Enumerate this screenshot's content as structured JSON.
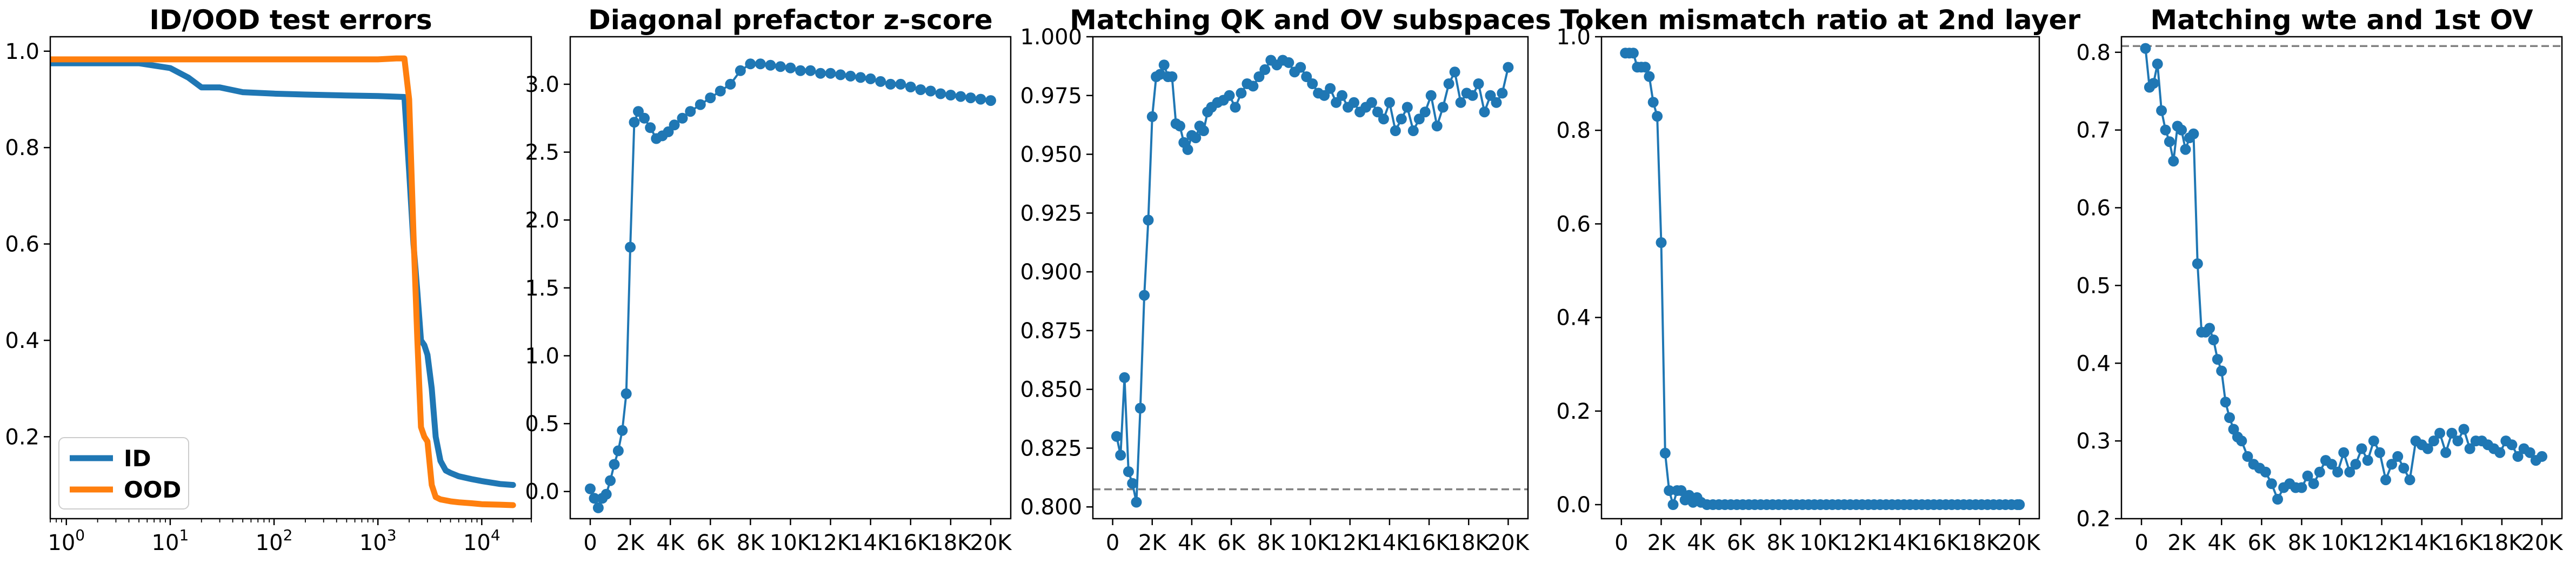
{
  "chart_data": [
    {
      "type": "line",
      "title": "ID/OOD test errors",
      "xscale": "log",
      "xlim": [
        0.7,
        30000
      ],
      "ylim": [
        0.03,
        1.03
      ],
      "xticks": [
        1,
        10,
        100,
        1000,
        10000
      ],
      "xtick_labels": [
        {
          "base": "10",
          "exp": "0"
        },
        {
          "base": "10",
          "exp": "1"
        },
        {
          "base": "10",
          "exp": "2"
        },
        {
          "base": "10",
          "exp": "3"
        },
        {
          "base": "10",
          "exp": "4"
        }
      ],
      "yticks": [
        0.2,
        0.4,
        0.6,
        0.8,
        1.0
      ],
      "ytick_labels": [
        "0.2",
        "0.4",
        "0.6",
        "0.8",
        "1.0"
      ],
      "legend": {
        "position": "lower-left"
      },
      "series": [
        {
          "name": "ID",
          "color": "#1f77b4",
          "x": [
            0.7,
            1,
            2,
            5,
            10,
            15,
            20,
            30,
            50,
            100,
            200,
            500,
            1000,
            1800,
            2000,
            2200,
            2400,
            2600,
            2800,
            3000,
            3300,
            3600,
            4000,
            4500,
            5000,
            6000,
            8000,
            10000,
            15000,
            20000
          ],
          "y": [
            0.975,
            0.975,
            0.975,
            0.975,
            0.965,
            0.945,
            0.925,
            0.925,
            0.915,
            0.912,
            0.91,
            0.908,
            0.907,
            0.905,
            0.75,
            0.6,
            0.5,
            0.4,
            0.39,
            0.37,
            0.3,
            0.2,
            0.15,
            0.13,
            0.125,
            0.118,
            0.112,
            0.108,
            0.102,
            0.1
          ]
        },
        {
          "name": "OOD",
          "color": "#ff7f0e",
          "x": [
            0.7,
            1,
            10,
            100,
            500,
            1000,
            1500,
            1800,
            2000,
            2200,
            2400,
            2600,
            2800,
            3000,
            3300,
            3600,
            4000,
            5000,
            6000,
            8000,
            10000,
            15000,
            20000
          ],
          "y": [
            0.983,
            0.983,
            0.983,
            0.983,
            0.983,
            0.983,
            0.985,
            0.985,
            0.9,
            0.62,
            0.4,
            0.22,
            0.2,
            0.19,
            0.1,
            0.075,
            0.07,
            0.066,
            0.064,
            0.062,
            0.06,
            0.059,
            0.058
          ]
        }
      ]
    },
    {
      "type": "line",
      "title": "Diagonal prefactor z-score",
      "xlim": [
        -1000,
        21000
      ],
      "ylim": [
        -0.2,
        3.35
      ],
      "xticks": [
        0,
        2000,
        4000,
        6000,
        8000,
        10000,
        12000,
        14000,
        16000,
        18000,
        20000
      ],
      "xtick_labels": [
        "0",
        "2K",
        "4K",
        "6K",
        "8K",
        "10K",
        "12K",
        "14K",
        "16K",
        "18K",
        "20K"
      ],
      "yticks": [
        0.0,
        0.5,
        1.0,
        1.5,
        2.0,
        2.5,
        3.0
      ],
      "ytick_labels": [
        "0.0",
        "0.5",
        "1.0",
        "1.5",
        "2.0",
        "2.5",
        "3.0"
      ],
      "series": [
        {
          "color": "#1f77b4",
          "marker": "o",
          "x": [
            0,
            200,
            400,
            600,
            800,
            1000,
            1200,
            1400,
            1600,
            1800,
            2000,
            2200,
            2400,
            2700,
            3000,
            3300,
            3600,
            3900,
            4200,
            4600,
            5000,
            5500,
            6000,
            6500,
            7000,
            7500,
            8000,
            8500,
            9000,
            9500,
            10000,
            10500,
            11000,
            11500,
            12000,
            12500,
            13000,
            13500,
            14000,
            14500,
            15000,
            15500,
            16000,
            16500,
            17000,
            17500,
            18000,
            18500,
            19000,
            19500,
            20000
          ],
          "y": [
            0.02,
            -0.05,
            -0.12,
            -0.05,
            -0.02,
            0.08,
            0.2,
            0.3,
            0.45,
            0.72,
            1.8,
            2.72,
            2.8,
            2.75,
            2.68,
            2.6,
            2.62,
            2.65,
            2.7,
            2.75,
            2.8,
            2.85,
            2.9,
            2.95,
            3.0,
            3.1,
            3.15,
            3.15,
            3.14,
            3.13,
            3.12,
            3.1,
            3.1,
            3.08,
            3.08,
            3.07,
            3.06,
            3.05,
            3.04,
            3.02,
            3.0,
            3.0,
            2.98,
            2.96,
            2.95,
            2.93,
            2.92,
            2.91,
            2.9,
            2.89,
            2.88
          ]
        }
      ]
    },
    {
      "type": "line",
      "title": "Matching QK and OV subspaces",
      "xlim": [
        -1000,
        21000
      ],
      "ylim": [
        0.795,
        1.0
      ],
      "xticks": [
        0,
        2000,
        4000,
        6000,
        8000,
        10000,
        12000,
        14000,
        16000,
        18000,
        20000
      ],
      "xtick_labels": [
        "0",
        "2K",
        "4K",
        "6K",
        "8K",
        "10K",
        "12K",
        "14K",
        "16K",
        "18K",
        "20K"
      ],
      "yticks": [
        0.8,
        0.825,
        0.85,
        0.875,
        0.9,
        0.925,
        0.95,
        0.975,
        1.0
      ],
      "ytick_labels": [
        "0.800",
        "0.825",
        "0.850",
        "0.875",
        "0.900",
        "0.925",
        "0.950",
        "0.975",
        "1.000"
      ],
      "reference_line": {
        "y": 0.8075,
        "style": "dashed",
        "color": "#808080"
      },
      "series": [
        {
          "color": "#1f77b4",
          "marker": "o",
          "x": [
            200,
            400,
            600,
            800,
            1000,
            1200,
            1400,
            1600,
            1800,
            2000,
            2200,
            2400,
            2600,
            2800,
            3000,
            3200,
            3400,
            3600,
            3800,
            4000,
            4200,
            4400,
            4600,
            4800,
            5000,
            5300,
            5600,
            5900,
            6200,
            6500,
            6800,
            7100,
            7400,
            7700,
            8000,
            8300,
            8600,
            8900,
            9200,
            9500,
            9800,
            10100,
            10400,
            10700,
            11000,
            11300,
            11600,
            11900,
            12200,
            12500,
            12800,
            13100,
            13400,
            13700,
            14000,
            14300,
            14600,
            14900,
            15200,
            15500,
            15800,
            16100,
            16400,
            16700,
            17000,
            17300,
            17600,
            17900,
            18200,
            18500,
            18800,
            19100,
            19400,
            19700,
            20000
          ],
          "y": [
            0.83,
            0.822,
            0.855,
            0.815,
            0.81,
            0.802,
            0.842,
            0.89,
            0.922,
            0.966,
            0.983,
            0.984,
            0.988,
            0.983,
            0.983,
            0.963,
            0.962,
            0.955,
            0.952,
            0.958,
            0.957,
            0.962,
            0.96,
            0.968,
            0.97,
            0.972,
            0.973,
            0.975,
            0.97,
            0.976,
            0.98,
            0.979,
            0.983,
            0.986,
            0.99,
            0.988,
            0.99,
            0.989,
            0.985,
            0.987,
            0.983,
            0.98,
            0.976,
            0.975,
            0.978,
            0.972,
            0.975,
            0.97,
            0.972,
            0.968,
            0.97,
            0.972,
            0.968,
            0.965,
            0.972,
            0.96,
            0.965,
            0.97,
            0.96,
            0.965,
            0.968,
            0.975,
            0.962,
            0.97,
            0.98,
            0.985,
            0.972,
            0.976,
            0.975,
            0.98,
            0.968,
            0.975,
            0.972,
            0.976,
            0.987
          ]
        }
      ]
    },
    {
      "type": "line",
      "title": "Token mismatch ratio at 2nd layer",
      "xlim": [
        -1000,
        21000
      ],
      "ylim": [
        -0.03,
        1.0
      ],
      "xticks": [
        0,
        2000,
        4000,
        6000,
        8000,
        10000,
        12000,
        14000,
        16000,
        18000,
        20000
      ],
      "xtick_labels": [
        "0",
        "2K",
        "4K",
        "6K",
        "8K",
        "10K",
        "12K",
        "14K",
        "16K",
        "18K",
        "20K"
      ],
      "yticks": [
        0.0,
        0.2,
        0.4,
        0.6,
        0.8,
        1.0
      ],
      "ytick_labels": [
        "0.0",
        "0.2",
        "0.4",
        "0.6",
        "0.8",
        "1.0"
      ],
      "series": [
        {
          "color": "#1f77b4",
          "marker": "o",
          "x": [
            200,
            400,
            600,
            800,
            1000,
            1200,
            1400,
            1600,
            1800,
            2000,
            2200,
            2400,
            2600,
            2800,
            3000,
            3200,
            3400,
            3600,
            3800,
            4000,
            4300,
            4600,
            4900,
            5200,
            5500,
            5800,
            6100,
            6400,
            6700,
            7000,
            7300,
            7600,
            7900,
            8200,
            8500,
            8800,
            9100,
            9400,
            9700,
            10000,
            10300,
            10600,
            10900,
            11200,
            11500,
            11800,
            12100,
            12400,
            12700,
            13000,
            13300,
            13600,
            13900,
            14200,
            14500,
            14800,
            15100,
            15400,
            15700,
            16000,
            16300,
            16600,
            16900,
            17200,
            17500,
            17800,
            18100,
            18400,
            18700,
            19000,
            19300,
            19600,
            19900,
            20000
          ],
          "y": [
            0.965,
            0.965,
            0.965,
            0.935,
            0.935,
            0.935,
            0.915,
            0.86,
            0.83,
            0.56,
            0.11,
            0.03,
            0.0,
            0.03,
            0.03,
            0.01,
            0.02,
            0.005,
            0.015,
            0.005,
            0.0,
            0.0,
            0.0,
            0.0,
            0.0,
            0.0,
            0.0,
            0.0,
            0.0,
            0.0,
            0.0,
            0.0,
            0.0,
            0.0,
            0.0,
            0.0,
            0.0,
            0.0,
            0.0,
            0.0,
            0.0,
            0.0,
            0.0,
            0.0,
            0.0,
            0.0,
            0.0,
            0.0,
            0.0,
            0.0,
            0.0,
            0.0,
            0.0,
            0.0,
            0.0,
            0.0,
            0.0,
            0.0,
            0.0,
            0.0,
            0.0,
            0.0,
            0.0,
            0.0,
            0.0,
            0.0,
            0.0,
            0.0,
            0.0,
            0.0,
            0.0,
            0.0,
            0.0,
            0.0
          ]
        }
      ]
    },
    {
      "type": "line",
      "title": "Matching wte and 1st OV",
      "xlim": [
        -1000,
        21000
      ],
      "ylim": [
        0.2,
        0.82
      ],
      "xticks": [
        0,
        2000,
        4000,
        6000,
        8000,
        10000,
        12000,
        14000,
        16000,
        18000,
        20000
      ],
      "xtick_labels": [
        "0",
        "2K",
        "4K",
        "6K",
        "8K",
        "10K",
        "12K",
        "14K",
        "16K",
        "18K",
        "20K"
      ],
      "yticks": [
        0.2,
        0.3,
        0.4,
        0.5,
        0.6,
        0.7,
        0.8
      ],
      "ytick_labels": [
        "0.2",
        "0.3",
        "0.4",
        "0.5",
        "0.6",
        "0.7",
        "0.8"
      ],
      "reference_line": {
        "y": 0.808,
        "style": "dashed",
        "color": "#808080"
      },
      "series": [
        {
          "color": "#1f77b4",
          "marker": "o",
          "x": [
            200,
            400,
            600,
            800,
            1000,
            1200,
            1400,
            1600,
            1800,
            2000,
            2200,
            2400,
            2600,
            2800,
            3000,
            3200,
            3400,
            3600,
            3800,
            4000,
            4200,
            4400,
            4600,
            4800,
            5000,
            5300,
            5600,
            5900,
            6200,
            6500,
            6800,
            7100,
            7400,
            7700,
            8000,
            8300,
            8600,
            8900,
            9200,
            9500,
            9800,
            10100,
            10400,
            10700,
            11000,
            11300,
            11600,
            11900,
            12200,
            12500,
            12800,
            13100,
            13400,
            13700,
            14000,
            14300,
            14600,
            14900,
            15200,
            15500,
            15800,
            16100,
            16400,
            16700,
            17000,
            17300,
            17600,
            17900,
            18200,
            18500,
            18800,
            19100,
            19400,
            19700,
            20000
          ],
          "y": [
            0.805,
            0.755,
            0.76,
            0.785,
            0.725,
            0.7,
            0.685,
            0.66,
            0.705,
            0.7,
            0.675,
            0.69,
            0.695,
            0.528,
            0.44,
            0.44,
            0.445,
            0.43,
            0.405,
            0.39,
            0.35,
            0.33,
            0.315,
            0.305,
            0.3,
            0.28,
            0.27,
            0.265,
            0.26,
            0.245,
            0.225,
            0.24,
            0.245,
            0.24,
            0.24,
            0.255,
            0.245,
            0.26,
            0.275,
            0.27,
            0.26,
            0.285,
            0.26,
            0.27,
            0.29,
            0.275,
            0.3,
            0.285,
            0.25,
            0.27,
            0.28,
            0.265,
            0.25,
            0.3,
            0.295,
            0.29,
            0.3,
            0.31,
            0.285,
            0.31,
            0.3,
            0.315,
            0.29,
            0.3,
            0.3,
            0.295,
            0.29,
            0.285,
            0.3,
            0.295,
            0.28,
            0.29,
            0.285,
            0.275,
            0.28
          ]
        }
      ]
    }
  ]
}
